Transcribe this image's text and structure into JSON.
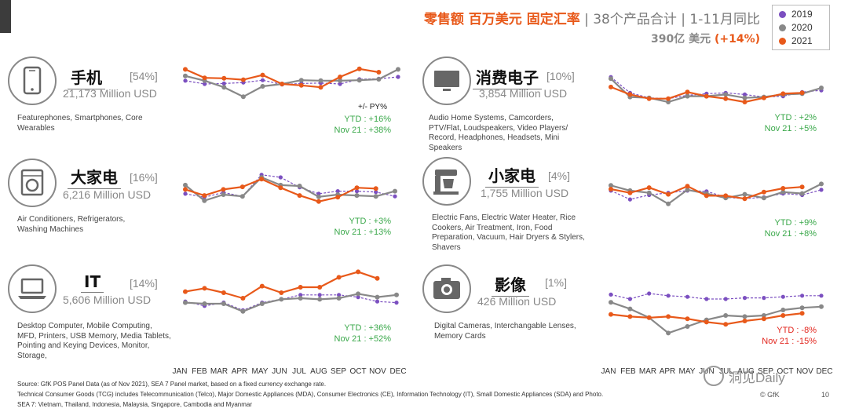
{
  "header": {
    "title_main": "零售额 百万美元 固定汇率",
    "title_rest": " | 38个产品合计 | 1-11月同比",
    "total_value": "390亿 美元",
    "total_change": "(+14%)"
  },
  "legend": [
    {
      "label": "2019",
      "color": "#7b4fc0"
    },
    {
      "label": "2020",
      "color": "#888888"
    },
    {
      "label": "2021",
      "color": "#e8591a"
    }
  ],
  "pypy_label": "+/- PY%",
  "categories": [
    {
      "name": "手机",
      "share": "[54%]",
      "sales": "21,173 Million USD",
      "desc": [
        "Featurephones, Smartphones, Core",
        "Wearables"
      ],
      "ytd": "YTD : +16%",
      "nov": "Nov 21 : +38%",
      "icon": "phone-icon",
      "negative": false
    },
    {
      "name": "大家电",
      "share": "[16%]",
      "sales": "6,216 Million USD",
      "desc": [
        "Air Conditioners, Refrigerators,",
        "Washing Machines"
      ],
      "ytd": "YTD :  +3%",
      "nov": "Nov 21 : +13%",
      "icon": "washing-machine-icon",
      "negative": false
    },
    {
      "name": "IT",
      "share": "[14%]",
      "sales": "5,606 Million USD",
      "desc": [
        "Desktop Computer, Mobile Computing,",
        "MFD, Printers, USB Memory, Media Tablets,",
        "Pointing and Keying Devices, Monitor,",
        "Storage,"
      ],
      "ytd": "YTD : +36%",
      "nov": "Nov 21 : +52%",
      "icon": "laptop-icon",
      "negative": false
    },
    {
      "name": "消费电子",
      "share": "[10%]",
      "sales": "3,854 Million USD",
      "desc": [
        "Audio Home Systems, Camcorders,",
        "PTV/Flat, Loudspeakers, Video Players/",
        "Record, Headphones, Headsets, Mini",
        "Speakers"
      ],
      "ytd": "YTD : +2%",
      "nov": "Nov 21 : +5%",
      "icon": "tv-icon",
      "negative": false
    },
    {
      "name": "小家电",
      "share": "[4%]",
      "sales": "1,755 Million USD",
      "desc": [
        "Electric Fans, Electric Water Heater, Rice",
        "Cookers, Air Treatment, Iron, Food",
        "Preparation, Vacuum, Hair Dryers & Stylers,",
        "Shavers"
      ],
      "ytd": "YTD : +9%",
      "nov": "Nov 21 : +8%",
      "icon": "mixer-icon",
      "negative": false
    },
    {
      "name": "影像",
      "share": "[1%]",
      "sales": "426 Million USD",
      "desc": [
        "Digital Cameras, Interchangable Lenses,",
        "Memory Cards"
      ],
      "ytd": "YTD : -8%",
      "nov": "Nov 21 : -15%",
      "icon": "camera-icon",
      "negative": true
    }
  ],
  "chart_data": {
    "type": "line",
    "title": "零售额 百万美元 固定汇率 | 38个产品合计 | 1-11月同比",
    "categories": [
      "JAN",
      "FEB",
      "MAR",
      "APR",
      "MAY",
      "JUN",
      "JUL",
      "AUG",
      "SEP",
      "OCT",
      "NOV",
      "DEC"
    ],
    "ylabel": "",
    "panels": [
      {
        "name": "手机",
        "ylim": [
          0,
          100
        ],
        "series": [
          {
            "name": "2019",
            "values": [
              62,
              55,
              56,
              58,
              63,
              54,
              56,
              57,
              55,
              65,
              66,
              70
            ]
          },
          {
            "name": "2020",
            "values": [
              72,
              62,
              48,
              28,
              50,
              55,
              63,
              62,
              62,
              63,
              65,
              86
            ]
          },
          {
            "name": "2021",
            "values": [
              86,
              68,
              67,
              64,
              74,
              55,
              52,
              48,
              70,
              87,
              80,
              null
            ]
          }
        ]
      },
      {
        "name": "大家电",
        "ylim": [
          0,
          100
        ],
        "series": [
          {
            "name": "2019",
            "values": [
              42,
              34,
              45,
              36,
              86,
              80,
              57,
              42,
              48,
              48,
              46,
              36
            ]
          },
          {
            "name": "2020",
            "values": [
              62,
              26,
              40,
              36,
              80,
              62,
              60,
              35,
              40,
              38,
              36,
              48
            ]
          },
          {
            "name": "2021",
            "values": [
              52,
              38,
              52,
              58,
              76,
              56,
              38,
              24,
              34,
              56,
              54,
              null
            ]
          }
        ]
      },
      {
        "name": "IT",
        "ylim": [
          0,
          100
        ],
        "series": [
          {
            "name": "2019",
            "values": [
              44,
              36,
              42,
              28,
              42,
              48,
              56,
              56,
              56,
              52,
              44,
              42
            ]
          },
          {
            "name": "2020",
            "values": [
              42,
              40,
              40,
              26,
              40,
              48,
              50,
              48,
              50,
              58,
              52,
              56
            ]
          },
          {
            "name": "2021",
            "values": [
              62,
              68,
              60,
              50,
              72,
              60,
              70,
              70,
              88,
              98,
              86,
              null
            ]
          }
        ]
      },
      {
        "name": "消费电子",
        "ylim": [
          0,
          100
        ],
        "series": [
          {
            "name": "2019",
            "values": [
              94,
              56,
              44,
              42,
              50,
              54,
              56,
              52,
              46,
              48,
              58,
              62
            ]
          },
          {
            "name": "2020",
            "values": [
              90,
              46,
              44,
              34,
              48,
              48,
              52,
              44,
              46,
              52,
              54,
              68
            ]
          },
          {
            "name": "2021",
            "values": [
              70,
              52,
              42,
              42,
              58,
              48,
              42,
              34,
              44,
              54,
              56,
              null
            ]
          }
        ]
      },
      {
        "name": "小家电",
        "ylim": [
          0,
          100
        ],
        "series": [
          {
            "name": "2019",
            "values": [
              62,
              38,
              50,
              56,
              62,
              60,
              44,
              40,
              44,
              54,
              50,
              64
            ]
          },
          {
            "name": "2020",
            "values": [
              76,
              62,
              56,
              26,
              64,
              54,
              42,
              52,
              42,
              58,
              54,
              80
            ]
          },
          {
            "name": "2021",
            "values": [
              66,
              56,
              70,
              52,
              74,
              48,
              48,
              40,
              58,
              68,
              72,
              null
            ]
          }
        ]
      },
      {
        "name": "影像",
        "ylim": [
          0,
          100
        ],
        "series": [
          {
            "name": "2019",
            "values": [
              78,
              70,
              80,
              76,
              74,
              70,
              70,
              72,
              72,
              74,
              76,
              76
            ]
          },
          {
            "name": "2020",
            "values": [
              64,
              52,
              36,
              8,
              20,
              32,
              40,
              38,
              40,
              50,
              54,
              56
            ]
          },
          {
            "name": "2021",
            "values": [
              42,
              38,
              36,
              38,
              34,
              28,
              24,
              30,
              34,
              40,
              44,
              null
            ]
          }
        ]
      }
    ],
    "legend_position": "top-right"
  },
  "footer": {
    "source": "Source: GfK POS Panel Data (as of Nov 2021), SEA 7 Panel market, based on a fixed currency exchange rate.",
    "groups": "Technical Consumer Goods (TCG) includes Telecommunication (Telco), Major Domestic Appliances (MDA), Consumer Electronics (CE), Information Technology (IT), Small Domestic Appliances (SDA) and Photo.",
    "sea7": "SEA 7: Vietnam, Thailand, Indonesia, Malaysia, Singapore, Cambodia and Myanmar",
    "gfk": "© GfK",
    "page": "10",
    "watermark": "洞见Daily"
  }
}
